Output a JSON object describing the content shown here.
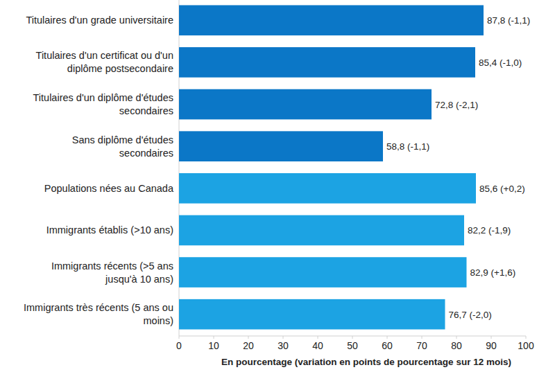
{
  "chart_data": {
    "type": "bar",
    "orientation": "horizontal",
    "categories": [
      "Titulaires d'un grade universitaire",
      "Titulaires d'un certificat ou d'un\ndiplôme postsecondaire",
      "Titulaires d'un diplôme d'études\nsecondaires",
      "Sans diplôme d'études\nsecondaires",
      "Populations nées au Canada",
      "Immigrants établis (>10 ans)",
      "Immigrants récents (>5 ans\njusqu'à 10 ans)",
      "Immigrants très récents (5 ans ou\nmoins)"
    ],
    "values": [
      87.8,
      85.4,
      72.8,
      58.8,
      85.6,
      82.2,
      82.9,
      76.7
    ],
    "value_labels": [
      "87,8 (-1,1)",
      "85,4 (-1,0)",
      "72,8 (-2,1)",
      "58,8 (-1,1)",
      "85,6 (+0,2)",
      "82,2 (-1,9)",
      "82,9 (+1,6)",
      "76,7 (-2,0)"
    ],
    "colors": [
      "#0b77c7",
      "#0b77c7",
      "#0b77c7",
      "#0b77c7",
      "#1ca3e3",
      "#1ca3e3",
      "#1ca3e3",
      "#1ca3e3"
    ],
    "xlabel": "En pourcentage (variation en points de pourcentage sur 12 mois)",
    "xlim": [
      0,
      100
    ],
    "xticks": [
      0,
      10,
      20,
      30,
      40,
      50,
      60,
      70,
      80,
      90,
      100
    ],
    "grid": false,
    "data_labels": true
  }
}
